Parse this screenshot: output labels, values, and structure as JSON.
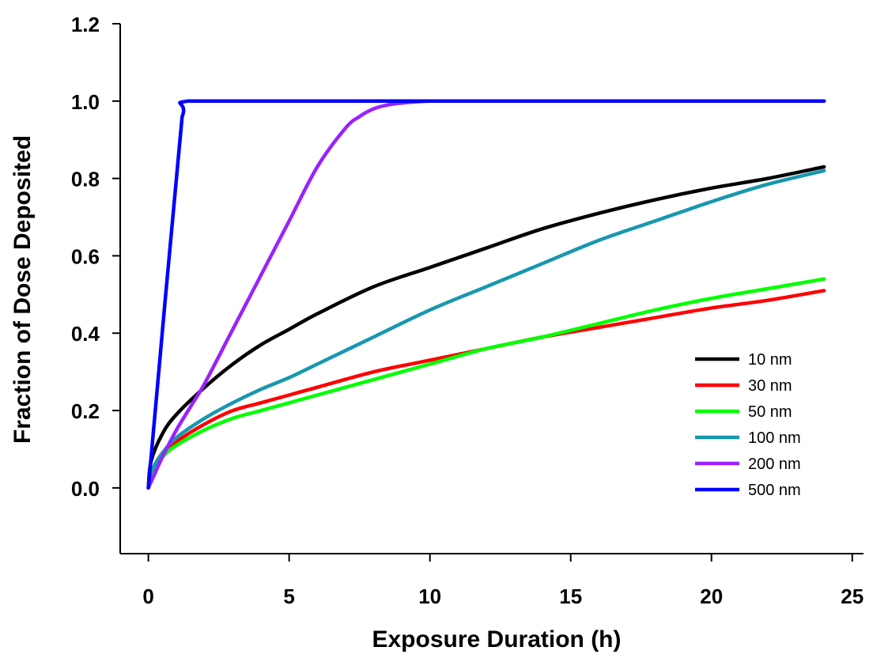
{
  "chart_data": {
    "type": "line",
    "title": "",
    "xlabel": "Exposure Duration (h)",
    "ylabel": "Fraction of Dose Deposited",
    "xlim": [
      -1,
      25.4
    ],
    "ylim": [
      -0.17,
      1.2
    ],
    "x_ticks": [
      0,
      5,
      10,
      15,
      20,
      25
    ],
    "x_tick_labels": [
      "0",
      "5",
      "10",
      "15",
      "20",
      "25"
    ],
    "y_ticks": [
      0.0,
      0.2,
      0.4,
      0.6,
      0.8,
      1.0,
      1.2
    ],
    "y_tick_labels": [
      "0.0",
      "0.2",
      "0.4",
      "0.6",
      "0.8",
      "1.0",
      "1.2"
    ],
    "grid": false,
    "legend_position": "lower-right",
    "series": [
      {
        "name": "10 nm",
        "color": "#000000",
        "x": [
          0,
          0.1,
          0.5,
          1,
          2,
          3,
          4,
          5,
          6,
          8,
          10,
          12,
          14,
          16,
          18,
          20,
          22,
          24
        ],
        "y": [
          0,
          0.07,
          0.14,
          0.19,
          0.26,
          0.32,
          0.37,
          0.41,
          0.45,
          0.52,
          0.57,
          0.62,
          0.67,
          0.71,
          0.745,
          0.775,
          0.8,
          0.83
        ]
      },
      {
        "name": "30 nm",
        "color": "#ff0000",
        "x": [
          0,
          0.1,
          0.5,
          1,
          2,
          3,
          4,
          5,
          6,
          8,
          10,
          12,
          14,
          16,
          18,
          20,
          22,
          24
        ],
        "y": [
          0,
          0.04,
          0.09,
          0.12,
          0.165,
          0.2,
          0.22,
          0.24,
          0.26,
          0.3,
          0.33,
          0.36,
          0.39,
          0.415,
          0.44,
          0.465,
          0.485,
          0.51
        ]
      },
      {
        "name": "50 nm",
        "color": "#00ff00",
        "x": [
          0,
          0.1,
          0.5,
          1,
          2,
          3,
          4,
          5,
          6,
          8,
          10,
          12,
          14,
          16,
          18,
          20,
          22,
          24
        ],
        "y": [
          0,
          0.035,
          0.08,
          0.11,
          0.15,
          0.18,
          0.2,
          0.22,
          0.24,
          0.28,
          0.32,
          0.36,
          0.39,
          0.425,
          0.46,
          0.49,
          0.515,
          0.54
        ]
      },
      {
        "name": "100 nm",
        "color": "#1897b0",
        "x": [
          0,
          0.1,
          0.5,
          1,
          2,
          3,
          4,
          5,
          6,
          8,
          10,
          12,
          14,
          16,
          18,
          20,
          22,
          24
        ],
        "y": [
          0,
          0.04,
          0.09,
          0.13,
          0.18,
          0.22,
          0.255,
          0.285,
          0.32,
          0.39,
          0.46,
          0.52,
          0.58,
          0.64,
          0.69,
          0.74,
          0.785,
          0.82
        ]
      },
      {
        "name": "200 nm",
        "color": "#9922ff",
        "x": [
          0,
          0.25,
          0.5,
          1,
          1.5,
          2,
          3,
          4,
          5,
          6,
          7,
          7.5,
          8,
          8.5,
          9,
          10,
          11,
          15,
          20,
          24
        ],
        "y": [
          0,
          0.04,
          0.08,
          0.15,
          0.21,
          0.27,
          0.41,
          0.55,
          0.69,
          0.83,
          0.93,
          0.96,
          0.98,
          0.99,
          0.995,
          1.0,
          1.0,
          1.0,
          1.0,
          1.0
        ]
      },
      {
        "name": "500 nm",
        "color": "#0000ff",
        "x": [
          0,
          1.2,
          1.4,
          5,
          10,
          15,
          20,
          24
        ],
        "y": [
          0,
          0.96,
          1.0,
          1.0,
          1.0,
          1.0,
          1.0,
          1.0
        ]
      }
    ]
  }
}
